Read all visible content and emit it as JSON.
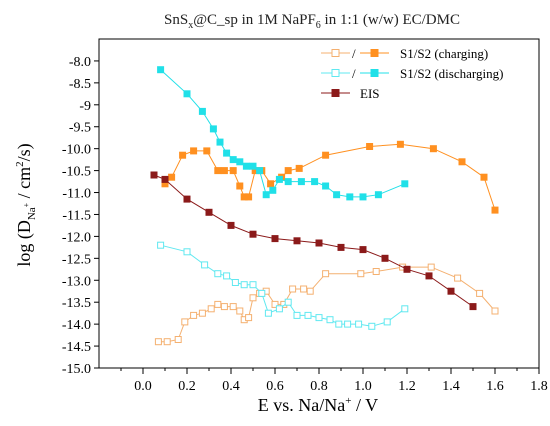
{
  "chart_data": {
    "type": "scatter",
    "title": {
      "pre": "SnS",
      "sub1": "x",
      "mid": "@C_sp in 1M NaPF",
      "sub2": "6",
      "post": " in 1:1 (w/w) EC/DMC"
    },
    "xlabel": {
      "pre": "E vs. Na/Na",
      "sup": "+",
      "post": " / V"
    },
    "ylabel": {
      "pre": "log (D",
      "sub": "Na",
      "subsup": "+",
      "post": " / cm",
      "sup": "2",
      "post2": "/s)"
    },
    "xlim": [
      -0.2,
      1.8
    ],
    "ylim": [
      -15.0,
      -7.5
    ],
    "xticks": [
      "0.0",
      "0.2",
      "0.4",
      "0.6",
      "0.8",
      "1.0",
      "1.2",
      "1.4",
      "1.6",
      "1.8"
    ],
    "yticks": [
      "-8.0",
      "-8.5",
      "-9",
      "-9.5",
      "-10.0",
      "-10.5",
      "-11.0",
      "-11.5",
      "-12.0",
      "-12.5",
      "-13.0",
      "-13.5",
      "-14.0",
      "-14.5",
      "-15.0"
    ],
    "legend": {
      "position": "top-right",
      "entries": [
        {
          "label": "S1/S2 (charging)",
          "slash": "/",
          "open_color": "#f4b070",
          "filled_color": "#ff9020"
        },
        {
          "label": "S1/S2 (discharging)",
          "slash": "/",
          "open_color": "#60e8f0",
          "filled_color": "#20e0e8"
        },
        {
          "label": "EIS",
          "color": "#8b1a1a"
        }
      ]
    },
    "series": [
      {
        "key": "s1_charging",
        "style": "open",
        "color": "#f4b070",
        "points": [
          [
            0.07,
            -14.4
          ],
          [
            0.11,
            -14.4
          ],
          [
            0.16,
            -14.35
          ],
          [
            0.19,
            -13.95
          ],
          [
            0.23,
            -13.8
          ],
          [
            0.27,
            -13.75
          ],
          [
            0.31,
            -13.65
          ],
          [
            0.34,
            -13.55
          ],
          [
            0.37,
            -13.6
          ],
          [
            0.41,
            -13.6
          ],
          [
            0.44,
            -13.7
          ],
          [
            0.46,
            -13.9
          ],
          [
            0.48,
            -13.85
          ],
          [
            0.5,
            -13.4
          ],
          [
            0.53,
            -13.3
          ],
          [
            0.56,
            -13.25
          ],
          [
            0.6,
            -13.55
          ],
          [
            0.64,
            -13.55
          ],
          [
            0.68,
            -13.2
          ],
          [
            0.73,
            -13.2
          ],
          [
            0.76,
            -13.25
          ],
          [
            0.83,
            -12.85
          ],
          [
            0.99,
            -12.85
          ],
          [
            1.06,
            -12.8
          ],
          [
            1.18,
            -12.7
          ],
          [
            1.31,
            -12.7
          ],
          [
            1.43,
            -12.95
          ],
          [
            1.53,
            -13.3
          ],
          [
            1.6,
            -13.7
          ]
        ]
      },
      {
        "key": "s2_charging",
        "style": "filled",
        "color": "#ff9020",
        "points": [
          [
            0.1,
            -10.8
          ],
          [
            0.13,
            -10.65
          ],
          [
            0.18,
            -10.15
          ],
          [
            0.23,
            -10.05
          ],
          [
            0.29,
            -10.05
          ],
          [
            0.34,
            -10.5
          ],
          [
            0.37,
            -10.5
          ],
          [
            0.41,
            -10.5
          ],
          [
            0.44,
            -10.85
          ],
          [
            0.46,
            -11.1
          ],
          [
            0.48,
            -11.1
          ],
          [
            0.51,
            -10.5
          ],
          [
            0.54,
            -10.5
          ],
          [
            0.58,
            -10.8
          ],
          [
            0.63,
            -10.65
          ],
          [
            0.66,
            -10.5
          ],
          [
            0.71,
            -10.45
          ],
          [
            0.83,
            -10.15
          ],
          [
            1.03,
            -9.95
          ],
          [
            1.17,
            -9.9
          ],
          [
            1.32,
            -10.0
          ],
          [
            1.45,
            -10.3
          ],
          [
            1.55,
            -10.65
          ],
          [
            1.6,
            -11.4
          ]
        ]
      },
      {
        "key": "s1_discharging",
        "style": "open",
        "color": "#60e8f0",
        "points": [
          [
            0.08,
            -12.2
          ],
          [
            0.2,
            -12.35
          ],
          [
            0.28,
            -12.65
          ],
          [
            0.34,
            -12.85
          ],
          [
            0.38,
            -12.9
          ],
          [
            0.42,
            -13.05
          ],
          [
            0.46,
            -13.1
          ],
          [
            0.5,
            -13.1
          ],
          [
            0.54,
            -13.3
          ],
          [
            0.57,
            -13.75
          ],
          [
            0.62,
            -13.65
          ],
          [
            0.66,
            -13.5
          ],
          [
            0.7,
            -13.8
          ],
          [
            0.75,
            -13.8
          ],
          [
            0.8,
            -13.85
          ],
          [
            0.85,
            -13.9
          ],
          [
            0.89,
            -14.0
          ],
          [
            0.93,
            -14.0
          ],
          [
            0.98,
            -14.0
          ],
          [
            1.04,
            -14.05
          ],
          [
            1.11,
            -13.95
          ],
          [
            1.19,
            -13.65
          ]
        ]
      },
      {
        "key": "s2_discharging",
        "style": "filled",
        "color": "#20e0e8",
        "points": [
          [
            0.08,
            -8.2
          ],
          [
            0.2,
            -8.75
          ],
          [
            0.27,
            -9.15
          ],
          [
            0.32,
            -9.55
          ],
          [
            0.35,
            -9.85
          ],
          [
            0.38,
            -10.1
          ],
          [
            0.41,
            -10.25
          ],
          [
            0.44,
            -10.3
          ],
          [
            0.47,
            -10.4
          ],
          [
            0.5,
            -10.4
          ],
          [
            0.53,
            -10.5
          ],
          [
            0.56,
            -11.05
          ],
          [
            0.59,
            -10.95
          ],
          [
            0.62,
            -10.7
          ],
          [
            0.66,
            -10.75
          ],
          [
            0.72,
            -10.75
          ],
          [
            0.78,
            -10.75
          ],
          [
            0.83,
            -10.85
          ],
          [
            0.88,
            -11.05
          ],
          [
            0.94,
            -11.1
          ],
          [
            1.0,
            -11.1
          ],
          [
            1.07,
            -11.05
          ],
          [
            1.19,
            -10.8
          ]
        ]
      },
      {
        "key": "eis",
        "style": "filled",
        "color": "#8b1a1a",
        "points": [
          [
            0.05,
            -10.6
          ],
          [
            0.1,
            -10.7
          ],
          [
            0.2,
            -11.15
          ],
          [
            0.3,
            -11.45
          ],
          [
            0.4,
            -11.75
          ],
          [
            0.5,
            -11.95
          ],
          [
            0.6,
            -12.05
          ],
          [
            0.7,
            -12.1
          ],
          [
            0.8,
            -12.15
          ],
          [
            0.9,
            -12.25
          ],
          [
            1.0,
            -12.3
          ],
          [
            1.1,
            -12.5
          ],
          [
            1.2,
            -12.75
          ],
          [
            1.3,
            -12.9
          ],
          [
            1.4,
            -13.25
          ],
          [
            1.5,
            -13.6
          ]
        ]
      }
    ]
  }
}
